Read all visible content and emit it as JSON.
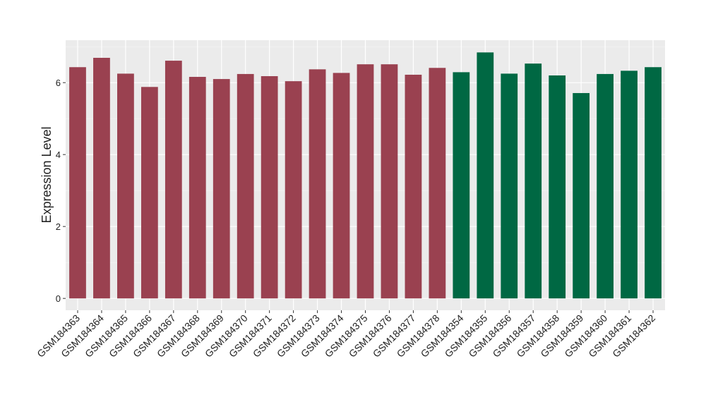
{
  "chart_data": {
    "type": "bar",
    "y_label": "Expression Level",
    "categories": [
      "GSM184363",
      "GSM184364",
      "GSM184365",
      "GSM184366",
      "GSM184367",
      "GSM184368",
      "GSM184369",
      "GSM184370",
      "GSM184371",
      "GSM184372",
      "GSM184373",
      "GSM184374",
      "GSM184375",
      "GSM184376",
      "GSM184377",
      "GSM184378",
      "GSM184354",
      "GSM184355",
      "GSM184356",
      "GSM184357",
      "GSM184358",
      "GSM184359",
      "GSM184360",
      "GSM184361",
      "GSM184362"
    ],
    "values": [
      6.43,
      6.69,
      6.25,
      5.88,
      6.61,
      6.16,
      6.1,
      6.24,
      6.18,
      6.04,
      6.37,
      6.27,
      6.51,
      6.51,
      6.22,
      6.41,
      6.29,
      6.84,
      6.25,
      6.53,
      6.2,
      5.71,
      6.24,
      6.33,
      6.43
    ],
    "colors": [
      "#9a4150",
      "#9a4150",
      "#9a4150",
      "#9a4150",
      "#9a4150",
      "#9a4150",
      "#9a4150",
      "#9a4150",
      "#9a4150",
      "#9a4150",
      "#9a4150",
      "#9a4150",
      "#9a4150",
      "#9a4150",
      "#9a4150",
      "#9a4150",
      "#006843",
      "#006843",
      "#006843",
      "#006843",
      "#006843",
      "#006843",
      "#006843",
      "#006843",
      "#006843"
    ],
    "ylim": [
      -0.33,
      7.18
    ],
    "yticks": [
      0,
      2,
      4,
      6
    ],
    "minor_yticks": [
      1,
      3,
      5,
      7
    ],
    "grid": true
  }
}
